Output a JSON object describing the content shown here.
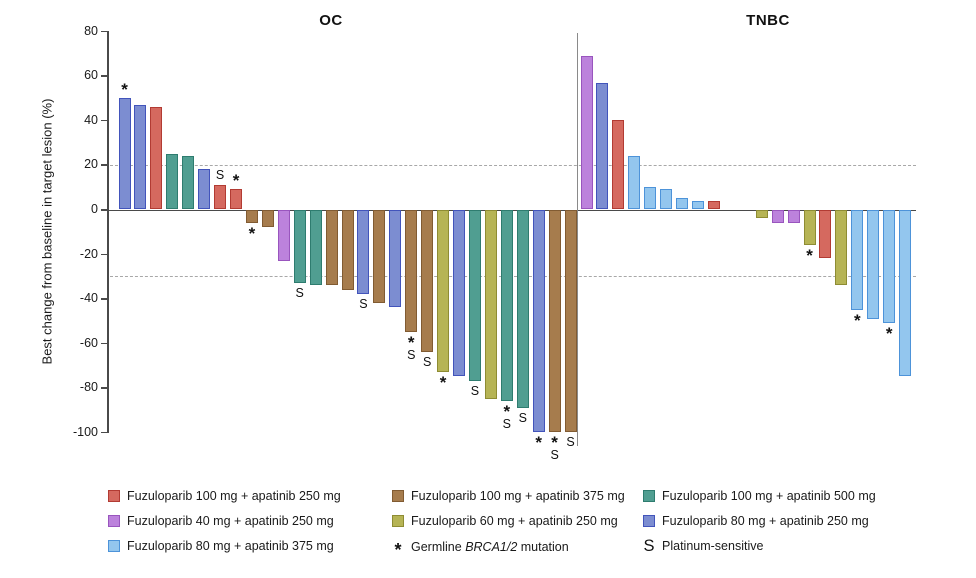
{
  "figure": {
    "ylabel": "Best change from baseline in target lesion (%)"
  },
  "groups": {
    "f100a250": {
      "label": "Fuzuloparib 100 mg + apatinib 250 mg",
      "fill": "#D5695F",
      "stroke": "#B23B33"
    },
    "f40a250": {
      "label": "Fuzuloparib 40 mg + apatinib 250 mg",
      "fill": "#BC82DC",
      "stroke": "#9955BE"
    },
    "f80a375": {
      "label": "Fuzuloparib 80 mg + apatinib 375 mg",
      "fill": "#93C6EE",
      "stroke": "#4D93D9"
    },
    "f100a375": {
      "label": "Fuzuloparib 100 mg + apatinib 375 mg",
      "fill": "#A67C4D",
      "stroke": "#815B32"
    },
    "f60a250": {
      "label": "Fuzuloparib 60 mg + apatinib 250 mg",
      "fill": "#B6B455",
      "stroke": "#8E8C33"
    },
    "f100a500": {
      "label": "Fuzuloparib 100 mg + apatinib 500 mg",
      "fill": "#509E91",
      "stroke": "#2E7C6F"
    },
    "f80a250": {
      "label": "Fuzuloparib 80 mg + apatinib 250 mg",
      "fill": "#7C8DD1",
      "stroke": "#4254BB"
    }
  },
  "chart_data": {
    "type": "bar",
    "subtype": "waterfall",
    "ylabel": "Best change from baseline in target lesion (%)",
    "ylim": [
      -100,
      80
    ],
    "yticks": [
      80,
      60,
      40,
      20,
      0,
      -20,
      -40,
      -60,
      -80,
      -100
    ],
    "reference_lines": [
      20,
      -30
    ],
    "grid": "off",
    "marks_legend": {
      "*": "Germline BRCA1/2 mutation",
      "S": "Platinum-sensitive"
    },
    "panels": [
      {
        "name": "OC",
        "bars": [
          {
            "value": 50,
            "group": "f80a250",
            "marks": [
              "*"
            ]
          },
          {
            "value": 47,
            "group": "f80a250",
            "marks": []
          },
          {
            "value": 46,
            "group": "f100a250",
            "marks": []
          },
          {
            "value": 25,
            "group": "f100a500",
            "marks": []
          },
          {
            "value": 24,
            "group": "f100a500",
            "marks": []
          },
          {
            "value": 18,
            "group": "f80a250",
            "marks": []
          },
          {
            "value": 11,
            "group": "f100a250",
            "marks": [
              "S"
            ]
          },
          {
            "value": 9,
            "group": "f100a250",
            "marks": [
              "*"
            ]
          },
          {
            "value": -6,
            "group": "f100a375",
            "marks": [
              "*"
            ]
          },
          {
            "value": -8,
            "group": "f100a375",
            "marks": []
          },
          {
            "value": -23,
            "group": "f40a250",
            "marks": []
          },
          {
            "value": -33,
            "group": "f100a500",
            "marks": [
              "S"
            ]
          },
          {
            "value": -34,
            "group": "f100a500",
            "marks": []
          },
          {
            "value": -34,
            "group": "f100a375",
            "marks": []
          },
          {
            "value": -36,
            "group": "f100a375",
            "marks": []
          },
          {
            "value": -38,
            "group": "f80a250",
            "marks": [
              "S"
            ]
          },
          {
            "value": -42,
            "group": "f100a375",
            "marks": []
          },
          {
            "value": -44,
            "group": "f80a250",
            "marks": []
          },
          {
            "value": -55,
            "group": "f100a375",
            "marks": [
              "*",
              "S"
            ]
          },
          {
            "value": -64,
            "group": "f100a375",
            "marks": [
              "S"
            ]
          },
          {
            "value": -73,
            "group": "f60a250",
            "marks": [
              "*"
            ]
          },
          {
            "value": -75,
            "group": "f80a250",
            "marks": []
          },
          {
            "value": -77,
            "group": "f100a500",
            "marks": [
              "S"
            ]
          },
          {
            "value": -85,
            "group": "f60a250",
            "marks": []
          },
          {
            "value": -86,
            "group": "f100a500",
            "marks": [
              "*",
              "S"
            ]
          },
          {
            "value": -89,
            "group": "f100a500",
            "marks": [
              "S"
            ]
          },
          {
            "value": -100,
            "group": "f80a250",
            "marks": [
              "*"
            ]
          },
          {
            "value": -100,
            "group": "f100a375",
            "marks": [
              "*",
              "S"
            ]
          },
          {
            "value": -100,
            "group": "f100a375",
            "marks": [
              "S"
            ]
          }
        ]
      },
      {
        "name": "TNBC",
        "gap": {
          "after_bar_index": 8,
          "slots": 2
        },
        "bars": [
          {
            "value": 69,
            "group": "f40a250",
            "marks": []
          },
          {
            "value": 57,
            "group": "f80a250",
            "marks": []
          },
          {
            "value": 40,
            "group": "f100a250",
            "marks": []
          },
          {
            "value": 24,
            "group": "f80a375",
            "marks": []
          },
          {
            "value": 10,
            "group": "f80a375",
            "marks": []
          },
          {
            "value": 9,
            "group": "f80a375",
            "marks": []
          },
          {
            "value": 5,
            "group": "f80a375",
            "marks": []
          },
          {
            "value": 4,
            "group": "f80a375",
            "marks": []
          },
          {
            "value": 4,
            "group": "f100a250",
            "marks": []
          },
          {
            "value": -4,
            "group": "f60a250",
            "marks": []
          },
          {
            "value": -6,
            "group": "f40a250",
            "marks": []
          },
          {
            "value": -6,
            "group": "f40a250",
            "marks": []
          },
          {
            "value": -16,
            "group": "f60a250",
            "marks": [
              "*"
            ]
          },
          {
            "value": -22,
            "group": "f100a250",
            "marks": []
          },
          {
            "value": -34,
            "group": "f60a250",
            "marks": []
          },
          {
            "value": -45,
            "group": "f80a375",
            "marks": [
              "*"
            ]
          },
          {
            "value": -49,
            "group": "f80a375",
            "marks": []
          },
          {
            "value": -51,
            "group": "f80a375",
            "marks": [
              "*"
            ]
          },
          {
            "value": -75,
            "group": "f80a375",
            "marks": []
          }
        ]
      }
    ]
  },
  "legend": {
    "columns": [
      {
        "rows": [
          {
            "type": "swatch",
            "group": "f100a250",
            "label": "Fuzuloparib 100 mg + apatinib 250 mg"
          },
          {
            "type": "swatch",
            "group": "f40a250",
            "label": "Fuzuloparib 40 mg + apatinib 250 mg"
          },
          {
            "type": "swatch",
            "group": "f80a375",
            "label": "Fuzuloparib 80 mg + apatinib 375 mg"
          }
        ]
      },
      {
        "rows": [
          {
            "type": "swatch",
            "group": "f100a375",
            "label": "Fuzuloparib 100 mg + apatinib 375 mg"
          },
          {
            "type": "swatch",
            "group": "f60a250",
            "label": "Fuzuloparib 60 mg + apatinib 250 mg"
          },
          {
            "type": "symbol",
            "symbol": "*",
            "label_pre": "Germline ",
            "label_italic": "BRCA1/2",
            "label_post": " mutation"
          }
        ]
      },
      {
        "rows": [
          {
            "type": "swatch",
            "group": "f100a500",
            "label": "Fuzuloparib 100 mg + apatinib 500 mg"
          },
          {
            "type": "swatch",
            "group": "f80a250",
            "label": "Fuzuloparib 80 mg + apatinib 250 mg"
          },
          {
            "type": "symbol",
            "symbol": "S",
            "label": "Platinum-sensitive"
          }
        ]
      }
    ]
  }
}
